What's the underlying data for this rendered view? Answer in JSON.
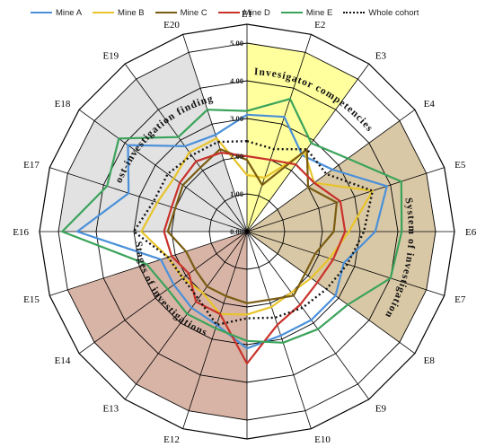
{
  "chart_data": {
    "type": "radar",
    "categories": [
      "E1",
      "E2",
      "E3",
      "E4",
      "E5",
      "E6",
      "E7",
      "E8",
      "E9",
      "E10",
      "E11",
      "E12",
      "E13",
      "E14",
      "E15",
      "E16",
      "E17",
      "E18",
      "E19",
      "E20"
    ],
    "rlim": [
      0,
      5
    ],
    "ticks": [
      "0.00",
      "1.00",
      "2.00",
      "3.00",
      "4.00",
      "5.00"
    ],
    "grid": true,
    "legend_position": "top",
    "sectors": [
      {
        "label": "Invesigator competencies",
        "from": "E1",
        "to": "E3",
        "color": "#ffff9e"
      },
      {
        "label": "System of investigation",
        "from": "E4",
        "to": "E8",
        "color": "#d9c8a6"
      },
      {
        "label": "Stages of investigations",
        "from": "E11",
        "to": "E15",
        "color": "#d8b4a6"
      },
      {
        "label": "Post-investigation findings",
        "from": "E16",
        "to": "E20",
        "color": "#e2e2e2"
      }
    ],
    "series": [
      {
        "name": "Mine A",
        "color": "#4a90d9",
        "style": "solid",
        "values": [
          3.1,
          3.2,
          2.5,
          2.8,
          3.9,
          3.4,
          2.7,
          2.9,
          2.9,
          2.9,
          3.1,
          2.6,
          2.5,
          2.4,
          2.4,
          4.5,
          3.3,
          3.9,
          2.8,
          2.7
        ]
      },
      {
        "name": "Mine B",
        "color": "#e8c42a",
        "style": "solid",
        "values": [
          1.5,
          1.5,
          2.6,
          2.2,
          3.5,
          2.7,
          2.3,
          2.1,
          2.0,
          2.1,
          2.2,
          2.3,
          2.0,
          2.1,
          2.2,
          2.8,
          2.5,
          2.4,
          2.6,
          2.6
        ]
      },
      {
        "name": "Mine C",
        "color": "#7a5c12",
        "style": "solid",
        "values": [
          1.9,
          1.3,
          2.7,
          2.0,
          2.5,
          2.3,
          1.9,
          1.9,
          2.1,
          1.9,
          1.9,
          1.8,
          1.8,
          1.7,
          1.7,
          2.1,
          2.0,
          2.1,
          2.1,
          2.3
        ]
      },
      {
        "name": "Mine D",
        "color": "#c8322a",
        "style": "solid",
        "values": [
          2.0,
          2.0,
          2.2,
          2.2,
          2.6,
          2.6,
          2.4,
          2.3,
          2.4,
          2.6,
          3.5,
          2.3,
          2.3,
          1.9,
          2.1,
          2.2,
          2.1,
          2.2,
          2.3,
          2.2
        ]
      },
      {
        "name": "Mine E",
        "color": "#3aa35a",
        "style": "solid",
        "values": [
          3.2,
          3.7,
          2.9,
          3.3,
          4.3,
          4.1,
          4.0,
          3.3,
          3.2,
          3.1,
          2.9,
          2.7,
          2.7,
          2.6,
          2.8,
          4.9,
          3.9,
          4.2,
          3.1,
          3.4
        ]
      },
      {
        "name": "Whole cohort",
        "color": "#111111",
        "style": "dotted",
        "values": [
          2.4,
          2.3,
          2.7,
          2.6,
          3.5,
          3.1,
          2.8,
          2.6,
          2.5,
          2.4,
          2.3,
          2.6,
          2.2,
          2.1,
          2.2,
          3.0,
          2.6,
          2.6,
          2.5,
          2.5
        ]
      }
    ]
  }
}
